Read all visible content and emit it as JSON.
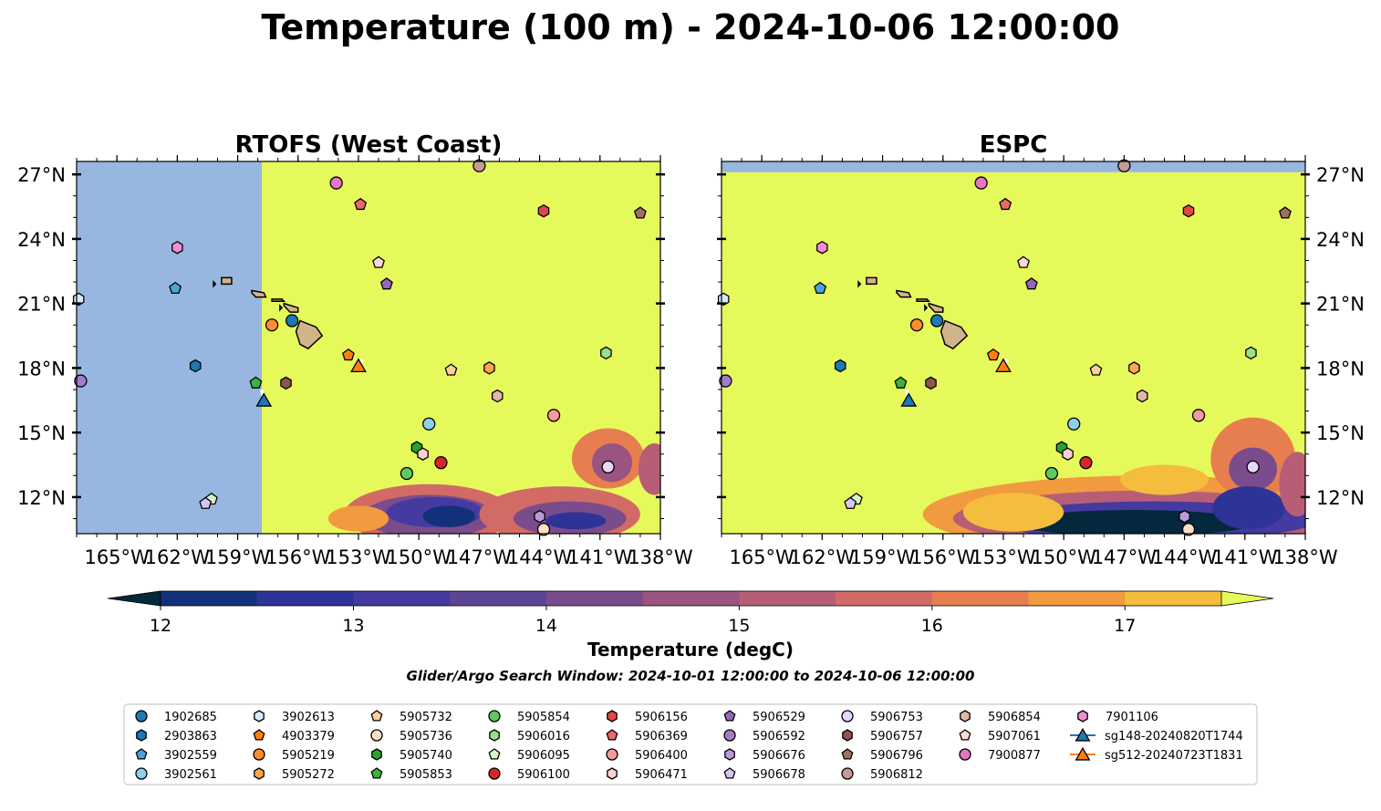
{
  "figure": {
    "title": "Temperature (100 m) - 2024-10-06 12:00:00",
    "search_window": "Glider/Argo Search Window: 2024-10-01 12:00:00 to 2024-10-06 12:00:00"
  },
  "colors": {
    "land": "#d2b48c",
    "nodata": "#98b7e0",
    "warm": "#e6f95a",
    "colormap": [
      "#04283c",
      "#12317a",
      "#2e3398",
      "#453a9f",
      "#5d4495",
      "#7a4c8b",
      "#99547f",
      "#b75e76",
      "#d26a66",
      "#e77e4f",
      "#f29a40",
      "#f5bd3e",
      "#e6f95a"
    ]
  },
  "chart_data": [
    {
      "type": "map",
      "title": "RTOFS (West Coast)",
      "xlim": [
        -167,
        -138
      ],
      "ylim": [
        10.3,
        27.6
      ],
      "xticks": [
        -165,
        -162,
        -159,
        -156,
        -153,
        -150,
        -147,
        -144,
        -141,
        -138
      ],
      "xtick_labels": [
        "165°W",
        "162°W",
        "159°W",
        "156°W",
        "153°W",
        "150°W",
        "147°W",
        "144°W",
        "141°W",
        "138°W"
      ],
      "yticks": [
        12,
        15,
        18,
        21,
        24,
        27
      ],
      "ytick_labels": [
        "12°N",
        "15°N",
        "18°N",
        "21°N",
        "24°N",
        "27°N"
      ],
      "model_coverage_west_lon": -157.8,
      "field_notes": "uniform >17.5 degC north of ~14N; cooler 13-16 degC patches near 11-13N, 145-150W and 140-144W"
    },
    {
      "type": "map",
      "title": "ESPC",
      "xlim": [
        -167,
        -138
      ],
      "ylim": [
        10.3,
        27.6
      ],
      "xticks": [
        -165,
        -162,
        -159,
        -156,
        -153,
        -150,
        -147,
        -144,
        -141,
        -138
      ],
      "xtick_labels": [
        "165°W",
        "162°W",
        "159°W",
        "156°W",
        "153°W",
        "150°W",
        "147°W",
        "144°W",
        "141°W",
        "138°W"
      ],
      "yticks": [
        12,
        15,
        18,
        21,
        24,
        27
      ],
      "ytick_labels": [
        "12°N",
        "15°N",
        "18°N",
        "21°N",
        "24°N",
        "27°N"
      ],
      "model_coverage_north_lat": 27.1,
      "field_notes": "uniform >17.5 degC north of ~13N; cold band (<12.5 degC) along 10.3-12N from 156W to 138W"
    }
  ],
  "colorbar": {
    "label": "Temperature (degC)",
    "levels": [
      11.5,
      12,
      12.5,
      13,
      13.5,
      14,
      14.5,
      15,
      15.5,
      16,
      16.5,
      17,
      17.5
    ],
    "tick_values": [
      12,
      13,
      14,
      15,
      16,
      17
    ],
    "tick_labels": [
      "12",
      "13",
      "14",
      "15",
      "16",
      "17"
    ],
    "extend": "both"
  },
  "floats": [
    {
      "id": "1902685",
      "color": "#1f77b4",
      "marker": "circle",
      "lon": -156.3,
      "lat": 20.2
    },
    {
      "id": "2903863",
      "color": "#1f77b4",
      "marker": "hexagon",
      "lon": -161.1,
      "lat": 18.1
    },
    {
      "id": "3902559",
      "color": "#4ba3dc",
      "marker": "pentagon",
      "lon": -162.1,
      "lat": 21.7
    },
    {
      "id": "3902561",
      "color": "#8ecfee",
      "marker": "circle",
      "lon": -149.5,
      "lat": 15.4
    },
    {
      "id": "3902613",
      "color": "#d3ecfa",
      "marker": "hexagon",
      "lon": -166.9,
      "lat": 21.2
    },
    {
      "id": "4903379",
      "color": "#ff7f0e",
      "marker": "pentagon",
      "lon": -153.5,
      "lat": 18.6
    },
    {
      "id": "5905219",
      "color": "#ff8c2e",
      "marker": "circle",
      "lon": -157.3,
      "lat": 20.0
    },
    {
      "id": "5905272",
      "color": "#ffa64d",
      "marker": "hexagon",
      "lon": -146.5,
      "lat": 18.0
    },
    {
      "id": "5905732",
      "color": "#ffcf99",
      "marker": "pentagon",
      "lon": -148.4,
      "lat": 17.9
    },
    {
      "id": "5905736",
      "color": "#fde0c5",
      "marker": "circle",
      "lon": -143.8,
      "lat": 10.5
    },
    {
      "id": "5905740",
      "color": "#2ca02c",
      "marker": "hexagon",
      "lon": -150.1,
      "lat": 14.3
    },
    {
      "id": "5905853",
      "color": "#3cb43c",
      "marker": "pentagon",
      "lon": -158.1,
      "lat": 17.3
    },
    {
      "id": "5905854",
      "color": "#60c860",
      "marker": "circle",
      "lon": -150.6,
      "lat": 13.1
    },
    {
      "id": "5906016",
      "color": "#98df8a",
      "marker": "hexagon",
      "lon": -140.7,
      "lat": 18.7
    },
    {
      "id": "5906095",
      "color": "#d8f5c8",
      "marker": "pentagon",
      "lon": -160.3,
      "lat": 11.9
    },
    {
      "id": "5906100",
      "color": "#d62728",
      "marker": "circle",
      "lon": -148.9,
      "lat": 13.6
    },
    {
      "id": "5906156",
      "color": "#e04848",
      "marker": "hexagon",
      "lon": -143.8,
      "lat": 25.3
    },
    {
      "id": "5906369",
      "color": "#ea6a6a",
      "marker": "pentagon",
      "lon": -152.9,
      "lat": 25.6
    },
    {
      "id": "5906400",
      "color": "#f39a9a",
      "marker": "circle",
      "lon": -143.3,
      "lat": 15.8
    },
    {
      "id": "5906471",
      "color": "#fbd0d0",
      "marker": "hexagon",
      "lon": -149.8,
      "lat": 14.0
    },
    {
      "id": "5906529",
      "color": "#9467bd",
      "marker": "pentagon",
      "lon": -151.6,
      "lat": 21.9
    },
    {
      "id": "5906592",
      "color": "#a57cc9",
      "marker": "circle",
      "lon": -166.8,
      "lat": 17.4
    },
    {
      "id": "5906676",
      "color": "#bb99dd",
      "marker": "hexagon",
      "lon": -144.0,
      "lat": 11.1
    },
    {
      "id": "5906678",
      "color": "#d8c4f0",
      "marker": "pentagon",
      "lon": -160.6,
      "lat": 11.7
    },
    {
      "id": "5906753",
      "color": "#e9d6fa",
      "marker": "circle",
      "lon": -140.6,
      "lat": 13.4
    },
    {
      "id": "5906757",
      "color": "#8c564b",
      "marker": "hexagon",
      "lon": -156.6,
      "lat": 17.3
    },
    {
      "id": "5906796",
      "color": "#a07060",
      "marker": "pentagon",
      "lon": -139.0,
      "lat": 25.2
    },
    {
      "id": "5906812",
      "color": "#c49c94",
      "marker": "circle",
      "lon": -147.0,
      "lat": 27.4
    },
    {
      "id": "5906854",
      "color": "#e0b8a8",
      "marker": "hexagon",
      "lon": -146.1,
      "lat": 16.7
    },
    {
      "id": "5907061",
      "color": "#fadad0",
      "marker": "pentagon",
      "lon": -152.0,
      "lat": 22.9
    },
    {
      "id": "7900877",
      "color": "#e377c2",
      "marker": "circle",
      "lon": -154.1,
      "lat": 26.6
    },
    {
      "id": "7901106",
      "color": "#f08fd6",
      "marker": "hexagon",
      "lon": -162.0,
      "lat": 23.6
    }
  ],
  "gliders": [
    {
      "id": "sg148-20240820T1744",
      "color": "#1f77b4",
      "lon": -157.7,
      "lat": 16.5,
      "track": [
        [
          -157.8,
          17.0
        ],
        [
          -157.7,
          16.5
        ]
      ]
    },
    {
      "id": "sg512-20240723T1831",
      "color": "#ff7f0e",
      "lon": -153.0,
      "lat": 18.1,
      "track": [
        [
          -152.8,
          18.4
        ],
        [
          -153.0,
          18.1
        ]
      ]
    }
  ],
  "legend": {
    "columns": [
      [
        "1902685",
        "2903863",
        "3902559",
        "3902561"
      ],
      [
        "3902613",
        "4903379",
        "5905219",
        "5905272"
      ],
      [
        "5905732",
        "5905736",
        "5905740",
        "5905853"
      ],
      [
        "5905854",
        "5906016",
        "5906095",
        "5906100"
      ],
      [
        "5906156",
        "5906369",
        "5906400",
        "5906471"
      ],
      [
        "5906529",
        "5906592",
        "5906676",
        "5906678"
      ],
      [
        "5906753",
        "5906757",
        "5906796",
        "5906812"
      ],
      [
        "5906854",
        "5907061",
        "7900877"
      ],
      [
        "7901106",
        "sg148-20240820T1744",
        "sg512-20240723T1831"
      ]
    ]
  }
}
